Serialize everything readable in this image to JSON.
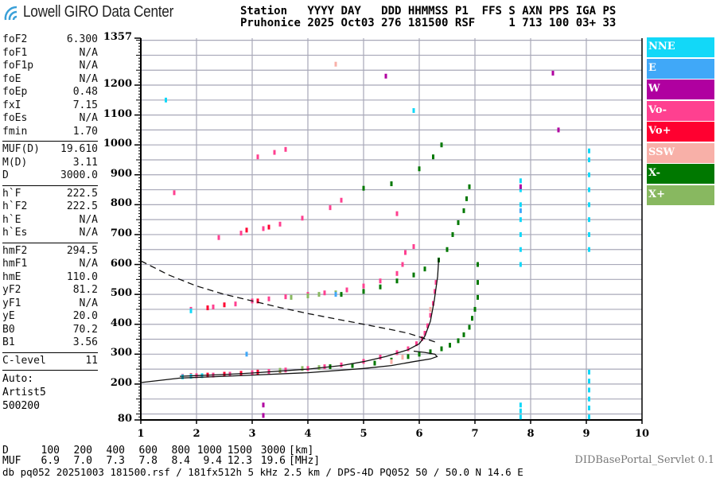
{
  "header": {
    "logo_text": "Lowell GIRO Data Center",
    "line1": "Station   YYYY DAY   DDD HHMMSS P1  FFS S AXN PPS IGA PS",
    "line2": "Pruhonice 2025 Oct03 276 181500 RSF     1 713 100 03+ 33"
  },
  "params": {
    "group1": [
      {
        "label": "foF2",
        "value": "6.300"
      },
      {
        "label": "foF1",
        "value": "N/A"
      },
      {
        "label": "foF1p",
        "value": "N/A"
      },
      {
        "label": "foE",
        "value": "N/A"
      },
      {
        "label": "foEp",
        "value": "0.48"
      },
      {
        "label": "fxI",
        "value": "7.15"
      },
      {
        "label": "foEs",
        "value": "N/A"
      },
      {
        "label": "fmin",
        "value": "1.70"
      }
    ],
    "group2": [
      {
        "label": "MUF(D)",
        "value": "19.610"
      },
      {
        "label": "M(D)",
        "value": "3.11"
      },
      {
        "label": "D",
        "value": "3000.0"
      }
    ],
    "group3": [
      {
        "label": "h`F",
        "value": "222.5"
      },
      {
        "label": "h`F2",
        "value": "222.5"
      },
      {
        "label": "h`E",
        "value": "N/A"
      },
      {
        "label": "h`Es",
        "value": "N/A"
      }
    ],
    "group4": [
      {
        "label": "hmF2",
        "value": "294.5"
      },
      {
        "label": "hmF1",
        "value": "N/A"
      },
      {
        "label": "hmE",
        "value": "110.0"
      },
      {
        "label": "yF2",
        "value": "81.2"
      },
      {
        "label": "yF1",
        "value": "N/A"
      },
      {
        "label": "yE",
        "value": "20.0"
      },
      {
        "label": "B0",
        "value": "70.2"
      },
      {
        "label": "B1",
        "value": "3.56"
      }
    ],
    "group5": [
      {
        "label": "C-level",
        "value": "11"
      }
    ],
    "auto": [
      "Auto:",
      "Artist5",
      "500200"
    ]
  },
  "legend": [
    {
      "name": "NNE",
      "color": "#12d8f8"
    },
    {
      "name": "E",
      "color": "#40a8f8"
    },
    {
      "name": "W",
      "color": "#b000a0"
    },
    {
      "name": "Vo-",
      "color": "#ff4090"
    },
    {
      "name": "Vo+",
      "color": "#ff0030"
    },
    {
      "name": "SSW",
      "color": "#f8b0a8"
    },
    {
      "name": "X-",
      "color": "#007800"
    },
    {
      "name": "X+",
      "color": "#88b860"
    }
  ],
  "chart_data": {
    "type": "scatter",
    "xlim": [
      1,
      10
    ],
    "ylim": [
      80,
      1357
    ],
    "x_ticks": [
      "1",
      "2",
      "3",
      "4",
      "5",
      "6",
      "7",
      "8",
      "9",
      "10"
    ],
    "y_ticks": [
      "1357",
      "1200",
      "1100",
      "1000",
      "900",
      "800",
      "700",
      "600",
      "500",
      "400",
      "300",
      "200",
      "80"
    ],
    "y_tick_values": [
      1357,
      1200,
      1100,
      1000,
      900,
      800,
      700,
      600,
      500,
      400,
      300,
      200,
      80
    ],
    "grid": true,
    "grid_x_step_mhz": 1,
    "grid_y_step_km": 50,
    "legend_placement": "right",
    "series": [
      {
        "name": "Vo-",
        "color": "#ff4090",
        "points": [
          [
            1.75,
            226
          ],
          [
            2.0,
            228
          ],
          [
            2.3,
            230
          ],
          [
            2.6,
            233
          ],
          [
            3.0,
            238
          ],
          [
            3.3,
            242
          ],
          [
            3.6,
            247
          ],
          [
            4.0,
            252
          ],
          [
            4.3,
            258
          ],
          [
            4.6,
            264
          ],
          [
            5.0,
            276
          ],
          [
            5.3,
            290
          ],
          [
            5.6,
            305
          ],
          [
            5.8,
            318
          ],
          [
            5.95,
            335
          ],
          [
            6.05,
            352
          ],
          [
            6.1,
            370
          ],
          [
            6.15,
            395
          ],
          [
            6.2,
            430
          ],
          [
            6.25,
            470
          ],
          [
            6.28,
            510
          ],
          [
            6.3,
            540
          ],
          [
            1.9,
            450
          ],
          [
            2.3,
            458
          ],
          [
            2.7,
            468
          ],
          [
            3.0,
            478
          ],
          [
            3.3,
            485
          ],
          [
            3.6,
            492
          ],
          [
            4.0,
            500
          ],
          [
            4.3,
            505
          ],
          [
            4.7,
            515
          ],
          [
            5.0,
            528
          ],
          [
            5.3,
            545
          ],
          [
            5.6,
            570
          ],
          [
            5.7,
            600
          ],
          [
            5.75,
            640
          ],
          [
            5.9,
            660
          ],
          [
            2.4,
            690
          ],
          [
            2.8,
            705
          ],
          [
            3.2,
            720
          ],
          [
            3.5,
            735
          ],
          [
            3.9,
            755
          ],
          [
            4.4,
            790
          ],
          [
            4.6,
            815
          ],
          [
            5.6,
            770
          ],
          [
            3.1,
            960
          ],
          [
            3.4,
            975
          ],
          [
            3.6,
            985
          ],
          [
            1.6,
            840
          ]
        ]
      },
      {
        "name": "Vo+",
        "color": "#ff0030",
        "points": [
          [
            1.9,
            228
          ],
          [
            2.2,
            230
          ],
          [
            2.5,
            233
          ],
          [
            2.8,
            236
          ],
          [
            3.1,
            240
          ],
          [
            3.5,
            245
          ],
          [
            2.2,
            455
          ],
          [
            2.5,
            465
          ],
          [
            3.1,
            478
          ],
          [
            2.9,
            715
          ],
          [
            3.3,
            725
          ]
        ]
      },
      {
        "name": "X-",
        "color": "#007800",
        "points": [
          [
            4.4,
            258
          ],
          [
            4.8,
            262
          ],
          [
            5.2,
            270
          ],
          [
            5.5,
            280
          ],
          [
            5.8,
            292
          ],
          [
            6.0,
            300
          ],
          [
            6.2,
            308
          ],
          [
            6.4,
            318
          ],
          [
            6.55,
            330
          ],
          [
            6.7,
            345
          ],
          [
            6.8,
            365
          ],
          [
            6.9,
            390
          ],
          [
            6.95,
            420
          ],
          [
            7.0,
            450
          ],
          [
            7.05,
            490
          ],
          [
            7.05,
            540
          ],
          [
            7.05,
            600
          ],
          [
            4.6,
            500
          ],
          [
            5.0,
            510
          ],
          [
            5.3,
            525
          ],
          [
            5.6,
            545
          ],
          [
            5.9,
            565
          ],
          [
            6.1,
            585
          ],
          [
            6.35,
            615
          ],
          [
            6.5,
            650
          ],
          [
            6.6,
            700
          ],
          [
            6.7,
            740
          ],
          [
            6.8,
            780
          ],
          [
            6.85,
            820
          ],
          [
            6.9,
            860
          ],
          [
            5.0,
            855
          ],
          [
            5.5,
            870
          ],
          [
            6.0,
            920
          ],
          [
            6.25,
            960
          ],
          [
            6.4,
            1000
          ]
        ]
      },
      {
        "name": "X+",
        "color": "#88b860",
        "points": [
          [
            3.5,
            246
          ],
          [
            3.9,
            252
          ],
          [
            4.2,
            255
          ],
          [
            3.7,
            490
          ],
          [
            4.0,
            495
          ],
          [
            4.2,
            500
          ],
          [
            4.5,
            505
          ]
        ]
      },
      {
        "name": "NNE",
        "color": "#12d8f8",
        "points": [
          [
            1.75,
            224
          ],
          [
            1.9,
            226
          ],
          [
            2.1,
            228
          ],
          [
            1.9,
            445
          ],
          [
            5.9,
            1115
          ],
          [
            1.45,
            1150
          ],
          [
            7.82,
            600
          ],
          [
            7.82,
            650
          ],
          [
            7.82,
            700
          ],
          [
            7.82,
            750
          ],
          [
            7.82,
            800
          ],
          [
            7.82,
            850
          ],
          [
            7.82,
            880
          ],
          [
            9.05,
            650
          ],
          [
            9.05,
            700
          ],
          [
            9.05,
            750
          ],
          [
            9.05,
            800
          ],
          [
            9.05,
            850
          ],
          [
            9.05,
            900
          ],
          [
            9.05,
            950
          ],
          [
            9.05,
            980
          ],
          [
            7.82,
            90
          ],
          [
            7.82,
            110
          ],
          [
            7.82,
            130
          ],
          [
            9.05,
            90
          ],
          [
            9.05,
            120
          ],
          [
            9.05,
            150
          ],
          [
            9.05,
            180
          ],
          [
            9.05,
            210
          ],
          [
            9.05,
            240
          ]
        ]
      },
      {
        "name": "E",
        "color": "#40a8f8",
        "points": [
          [
            2.9,
            300
          ],
          [
            4.5,
            500
          ],
          [
            7.82,
            780
          ]
        ]
      },
      {
        "name": "W",
        "color": "#b000a0",
        "points": [
          [
            3.2,
            95
          ],
          [
            3.2,
            130
          ],
          [
            5.4,
            1230
          ],
          [
            8.5,
            1050
          ],
          [
            8.4,
            1240
          ],
          [
            7.82,
            860
          ]
        ]
      },
      {
        "name": "SSW",
        "color": "#f8b0a8",
        "points": [
          [
            5.5,
            275
          ],
          [
            5.7,
            290
          ],
          [
            6.2,
            450
          ],
          [
            4.5,
            1270
          ]
        ]
      }
    ],
    "curves": [
      {
        "style": "solid",
        "points": [
          [
            1.0,
            205
          ],
          [
            1.7,
            220
          ],
          [
            2.5,
            226
          ],
          [
            3.0,
            230
          ],
          [
            4.0,
            238
          ],
          [
            5.0,
            252
          ],
          [
            5.5,
            262
          ],
          [
            5.9,
            275
          ],
          [
            6.2,
            284
          ],
          [
            6.32,
            292
          ],
          [
            6.28,
            300
          ],
          [
            6.1,
            306
          ],
          [
            5.9,
            310
          ]
        ]
      },
      {
        "style": "solid",
        "points": [
          [
            1.7,
            226
          ],
          [
            2.5,
            232
          ],
          [
            3.0,
            237
          ],
          [
            4.0,
            250
          ],
          [
            4.6,
            262
          ],
          [
            5.0,
            275
          ],
          [
            5.4,
            292
          ],
          [
            5.8,
            315
          ],
          [
            6.0,
            335
          ],
          [
            6.1,
            360
          ],
          [
            6.2,
            410
          ],
          [
            6.27,
            480
          ],
          [
            6.33,
            560
          ],
          [
            6.35,
            620
          ]
        ]
      },
      {
        "style": "dashed",
        "points": [
          [
            1.0,
            612
          ],
          [
            1.5,
            565
          ],
          [
            2.0,
            528
          ],
          [
            2.5,
            500
          ],
          [
            3.0,
            478
          ],
          [
            3.5,
            456
          ],
          [
            4.0,
            436
          ],
          [
            4.5,
            418
          ],
          [
            5.0,
            400
          ],
          [
            5.5,
            382
          ],
          [
            5.8,
            370
          ],
          [
            6.0,
            358
          ],
          [
            6.3,
            340
          ]
        ]
      }
    ]
  },
  "bottom": {
    "d_label": "D",
    "d_values": [
      "100",
      "200",
      "400",
      "600",
      "800",
      "1000",
      "1500",
      "3000"
    ],
    "d_unit": "[km]",
    "muf_label": "MUF",
    "muf_values": [
      "6.9",
      "7.0",
      "7.3",
      "7.8",
      "8.4",
      "9.4",
      "12.3",
      "19.6"
    ],
    "muf_unit": "[MHz]",
    "servlet": "DIDBasePortal_Servlet 0.1",
    "footer": "db pq052 20251003 181500.rsf / 181fx512h 5 kHz 2.5 km / DPS-4D PQ052 50 / 50.0 N 14.6 E"
  }
}
